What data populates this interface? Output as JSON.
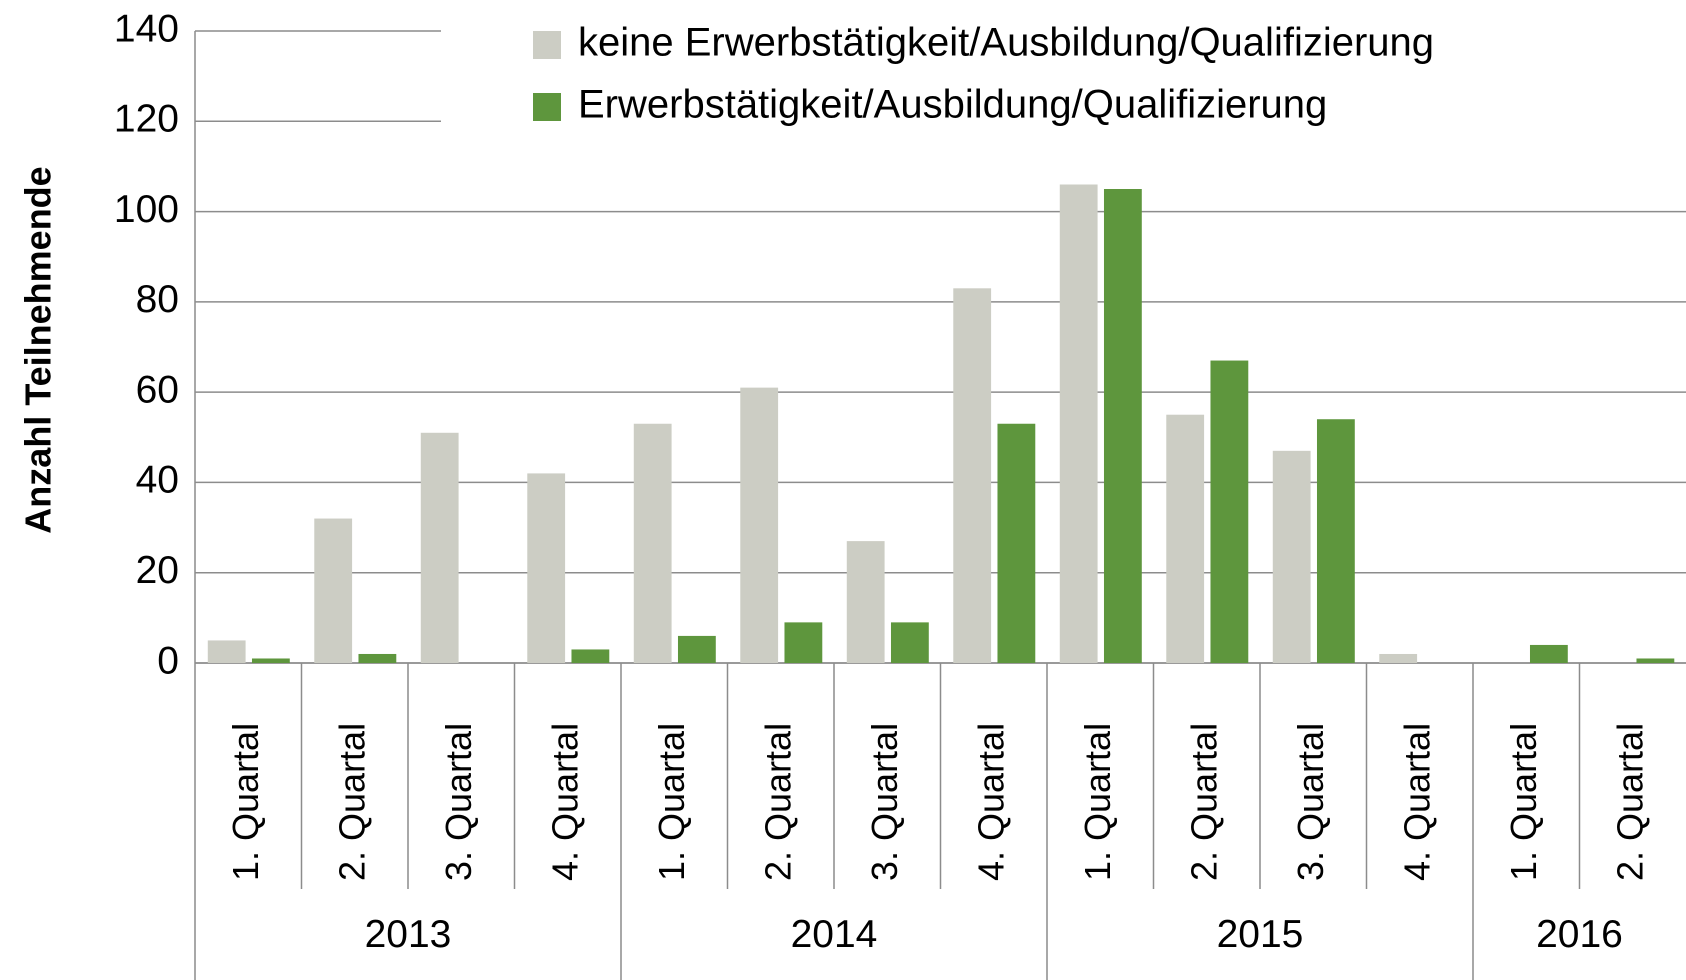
{
  "chart_data": {
    "type": "bar",
    "ylabel": "Anzahl Teilnehmende",
    "groups": [
      {
        "label": "2013",
        "categories": [
          "1. Quartal",
          "2. Quartal",
          "3. Quartal",
          "4. Quartal"
        ]
      },
      {
        "label": "2014",
        "categories": [
          "1. Quartal",
          "2. Quartal",
          "3. Quartal",
          "4. Quartal"
        ]
      },
      {
        "label": "2015",
        "categories": [
          "1. Quartal",
          "2. Quartal",
          "3. Quartal",
          "4. Quartal"
        ]
      },
      {
        "label": "2016",
        "categories": [
          "1. Quartal",
          "2. Quartal"
        ]
      }
    ],
    "series": [
      {
        "name": "keine Erwerbstätigkeit/Ausbildung/Qualifizierung",
        "color": "#cccdc4",
        "values": [
          5,
          32,
          51,
          42,
          53,
          61,
          27,
          83,
          106,
          55,
          47,
          2,
          0,
          0
        ]
      },
      {
        "name": "Erwerbstätigkeit/Ausbildung/Qualifizierung",
        "color": "#5e963d",
        "values": [
          1,
          2,
          0,
          3,
          6,
          9,
          9,
          53,
          105,
          67,
          54,
          0,
          4,
          1
        ]
      }
    ],
    "ylim": [
      0,
      140
    ],
    "yticks": [
      0,
      20,
      40,
      60,
      80,
      100,
      120,
      140
    ],
    "grid": true,
    "legend": "top-right"
  }
}
